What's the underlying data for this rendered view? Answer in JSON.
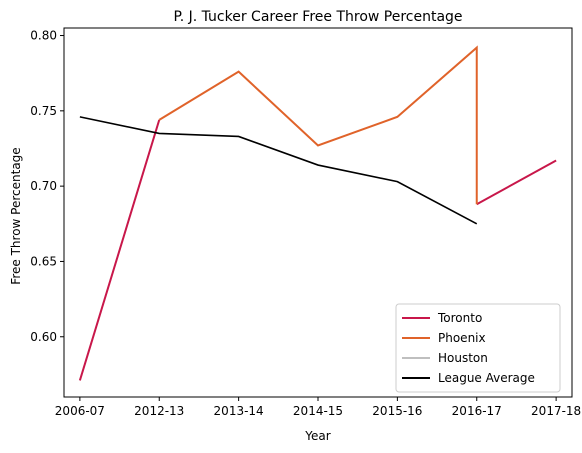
{
  "chart_data": {
    "type": "line",
    "title": "P. J. Tucker Career Free Throw Percentage",
    "xlabel": "Year",
    "ylabel": "Free Throw Percentage",
    "categories": [
      "2006-07",
      "2012-13",
      "2013-14",
      "2014-15",
      "2015-16",
      "2016-17",
      "2017-18"
    ],
    "ylim": [
      0.56,
      0.805
    ],
    "yticks": [
      "0.60",
      "0.65",
      "0.70",
      "0.75",
      "0.80"
    ],
    "ytick_values": [
      0.6,
      0.65,
      0.7,
      0.75,
      0.8
    ],
    "legend_position": "lower right",
    "grid": false,
    "series": [
      {
        "name": "Toronto",
        "color": "#c8174a",
        "points": [
          [
            0,
            0.571
          ],
          [
            1,
            0.744
          ]
        ]
      },
      {
        "name": "Toronto",
        "color": "#c8174a",
        "legend": false,
        "points": [
          [
            5,
            0.688
          ],
          [
            6,
            0.717
          ]
        ]
      },
      {
        "name": "Phoenix",
        "color": "#e0632a",
        "points": [
          [
            1,
            0.744
          ],
          [
            2,
            0.776
          ],
          [
            3,
            0.727
          ],
          [
            4,
            0.746
          ],
          [
            5,
            0.792
          ],
          [
            5,
            0.688
          ]
        ]
      },
      {
        "name": "Houston",
        "color": "#bfbfbf",
        "points": []
      },
      {
        "name": "League Average",
        "color": "#000000",
        "points": [
          [
            0,
            0.746
          ],
          [
            1,
            0.735
          ],
          [
            2,
            0.733
          ],
          [
            3,
            0.714
          ],
          [
            4,
            0.703
          ],
          [
            5,
            0.675
          ]
        ]
      }
    ],
    "legend": [
      "Toronto",
      "Phoenix",
      "Houston",
      "League Average"
    ]
  }
}
